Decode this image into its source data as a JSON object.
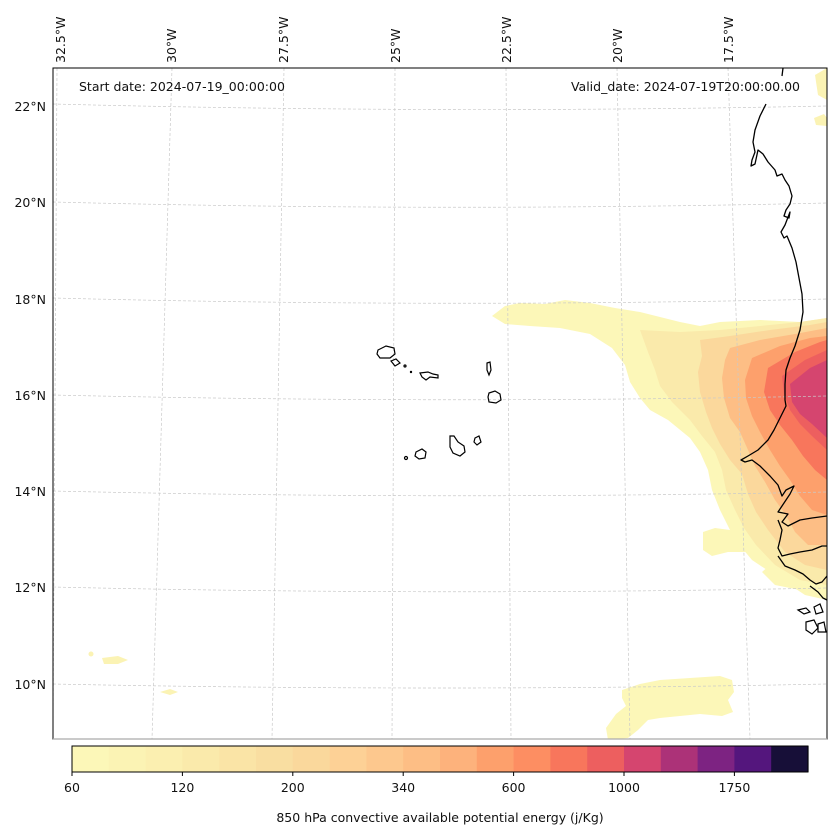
{
  "figure": {
    "start_date_label": "Start date: 2024-07-19_00:00:00",
    "valid_date_label": "Valid_date: 2024-07-19T20:00:00.00",
    "colorbar_label": "850 hPa convective available potential energy (j/Kg)"
  },
  "map": {
    "variable": "850 hPa convective available potential energy",
    "units": "j/Kg",
    "lon_labels": [
      "32.5°W",
      "30°W",
      "27.5°W",
      "25°W",
      "22.5°W",
      "20°W",
      "17.5°W"
    ],
    "lat_labels": [
      "22°N",
      "20°N",
      "18°N",
      "16°N",
      "14°N",
      "12°N",
      "10°N"
    ],
    "features": [
      "coastline West Africa",
      "Cape Verde islands"
    ]
  },
  "colorbar": {
    "tick_labels": [
      "60",
      "120",
      "200",
      "340",
      "600",
      "1000",
      "1750"
    ],
    "levels_count": 20,
    "colors": [
      "#fcf7b8",
      "#fbf3b4",
      "#fbefb0",
      "#faeaab",
      "#fae4a6",
      "#f9dea1",
      "#fad89c",
      "#fdd196",
      "#fdc88e",
      "#fdbe85",
      "#fdb27c",
      "#fda06c",
      "#fd8e62",
      "#f8765c",
      "#ed5f5f",
      "#d5456f",
      "#ac3278",
      "#7d2382",
      "#54167d",
      "#170f38"
    ]
  }
}
